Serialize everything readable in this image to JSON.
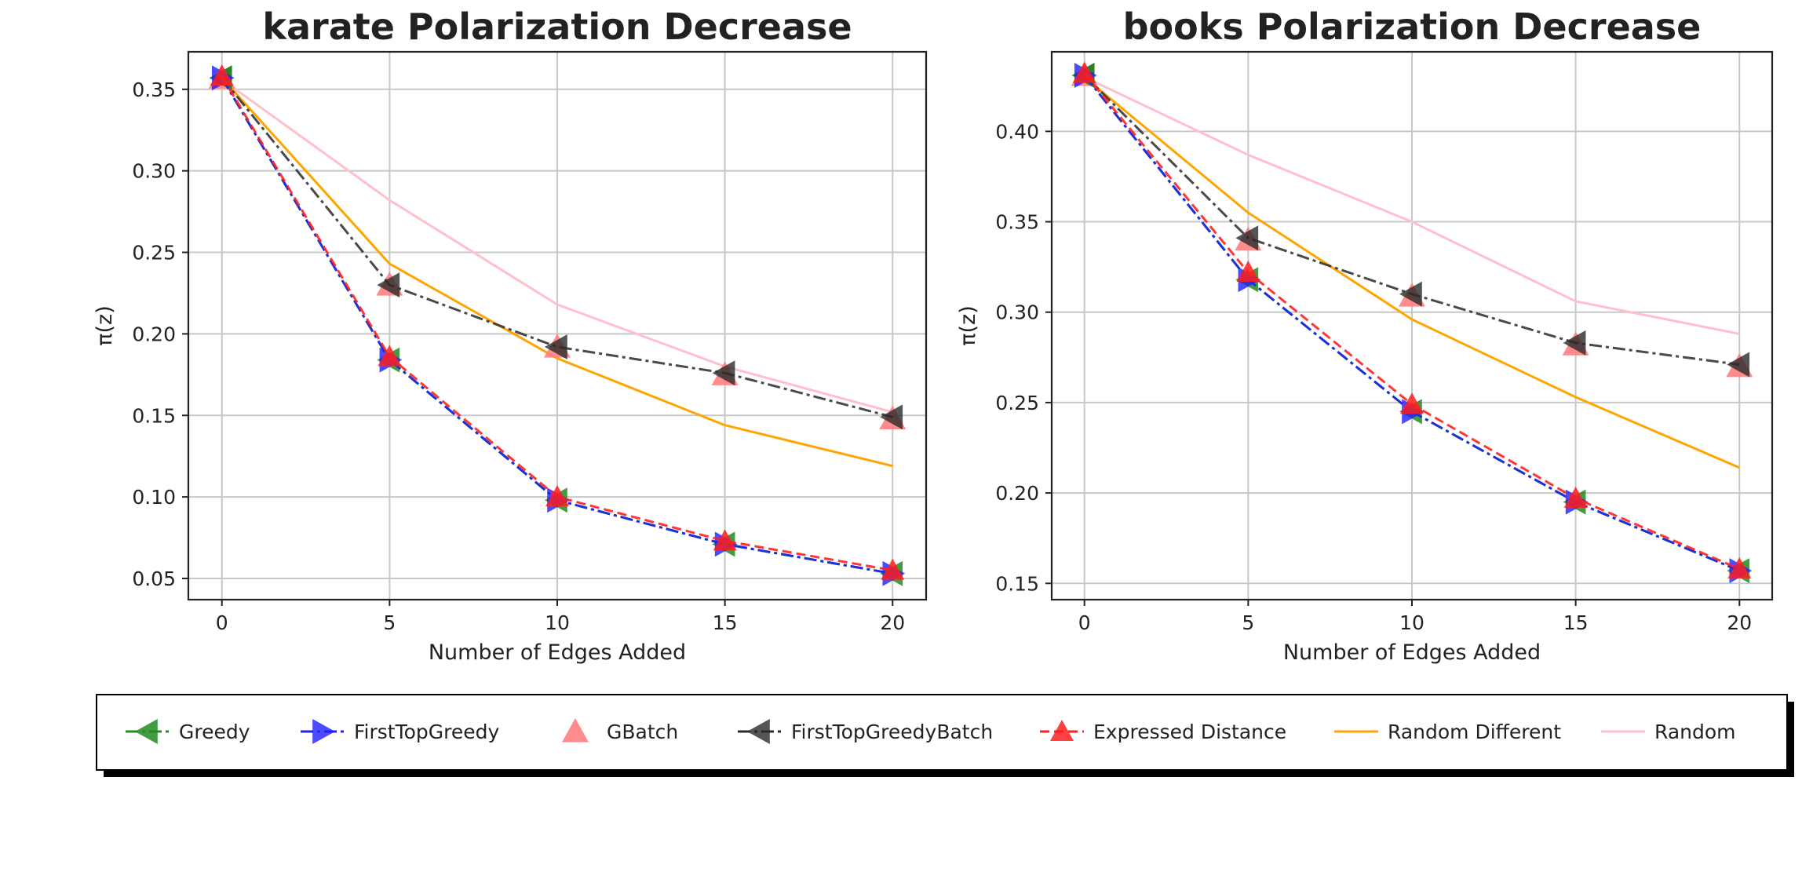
{
  "chart_data": [
    {
      "type": "line",
      "title": "karate Polarization Decrease",
      "xlabel": "Number of Edges Added",
      "ylabel": "π(z)",
      "x": [
        0,
        5,
        10,
        15,
        20
      ],
      "xlim": [
        -1,
        21
      ],
      "ylim": [
        0.037,
        0.373
      ],
      "xticks": [
        0,
        5,
        10,
        15,
        20
      ],
      "yticks": [
        0.05,
        0.1,
        0.15,
        0.2,
        0.25,
        0.3,
        0.35
      ],
      "ytick_labels": [
        "0.05",
        "0.10",
        "0.15",
        "0.20",
        "0.25",
        "0.30",
        "0.35"
      ],
      "grid": true,
      "series": [
        {
          "name": "Greedy",
          "values": [
            0.357,
            0.184,
            0.098,
            0.071,
            0.053
          ]
        },
        {
          "name": "FirstTopGreedy",
          "values": [
            0.357,
            0.184,
            0.098,
            0.071,
            0.053
          ]
        },
        {
          "name": "GBatch",
          "values": [
            0.357,
            0.23,
            0.192,
            0.175,
            0.148
          ]
        },
        {
          "name": "FirstTopGreedyBatch",
          "values": [
            0.357,
            0.23,
            0.192,
            0.176,
            0.149
          ]
        },
        {
          "name": "Expressed Distance",
          "values": [
            0.358,
            0.186,
            0.1,
            0.073,
            0.055
          ]
        },
        {
          "name": "Random Different",
          "values": [
            0.357,
            0.243,
            0.185,
            0.144,
            0.119
          ]
        },
        {
          "name": "Random",
          "values": [
            0.356,
            0.282,
            0.218,
            0.18,
            0.152
          ]
        }
      ]
    },
    {
      "type": "line",
      "title": "books Polarization Decrease",
      "xlabel": "Number of Edges Added",
      "ylabel": "π(z)",
      "x": [
        0,
        5,
        10,
        15,
        20
      ],
      "xlim": [
        -1,
        21
      ],
      "ylim": [
        0.141,
        0.444
      ],
      "xticks": [
        0,
        5,
        10,
        15,
        20
      ],
      "yticks": [
        0.15,
        0.2,
        0.25,
        0.3,
        0.35,
        0.4
      ],
      "ytick_labels": [
        "0.15",
        "0.20",
        "0.25",
        "0.30",
        "0.35",
        "0.40"
      ],
      "grid": true,
      "series": [
        {
          "name": "Greedy",
          "values": [
            0.431,
            0.318,
            0.245,
            0.195,
            0.157
          ]
        },
        {
          "name": "FirstTopGreedy",
          "values": [
            0.431,
            0.318,
            0.245,
            0.195,
            0.157
          ]
        },
        {
          "name": "GBatch",
          "values": [
            0.431,
            0.34,
            0.309,
            0.282,
            0.27
          ]
        },
        {
          "name": "FirstTopGreedyBatch",
          "values": [
            0.431,
            0.341,
            0.31,
            0.283,
            0.271
          ]
        },
        {
          "name": "Expressed Distance",
          "values": [
            0.432,
            0.322,
            0.249,
            0.197,
            0.158
          ]
        },
        {
          "name": "Random Different",
          "values": [
            0.43,
            0.355,
            0.296,
            0.253,
            0.214
          ]
        },
        {
          "name": "Random",
          "values": [
            0.43,
            0.387,
            0.35,
            0.306,
            0.288
          ]
        }
      ]
    }
  ],
  "legend": {
    "position": "bottom",
    "entries": [
      {
        "name": "Greedy",
        "color": "#228B22",
        "line": "dash-dot",
        "marker": "triangle-left"
      },
      {
        "name": "FirstTopGreedy",
        "color": "#1f1fff",
        "line": "dash-dot",
        "marker": "triangle-right"
      },
      {
        "name": "GBatch",
        "color": "#ff8080",
        "line": "none",
        "marker": "triangle-up"
      },
      {
        "name": "FirstTopGreedyBatch",
        "color": "#2a2a2a",
        "line": "dash-dot",
        "marker": "triangle-left"
      },
      {
        "name": "Expressed Distance",
        "color": "#ff2020",
        "line": "dashed",
        "marker": "triangle-up"
      },
      {
        "name": "Random Different",
        "color": "#FFA500",
        "line": "solid",
        "marker": "none"
      },
      {
        "name": "Random",
        "color": "#FFC0CB",
        "line": "solid",
        "marker": "none"
      }
    ]
  }
}
